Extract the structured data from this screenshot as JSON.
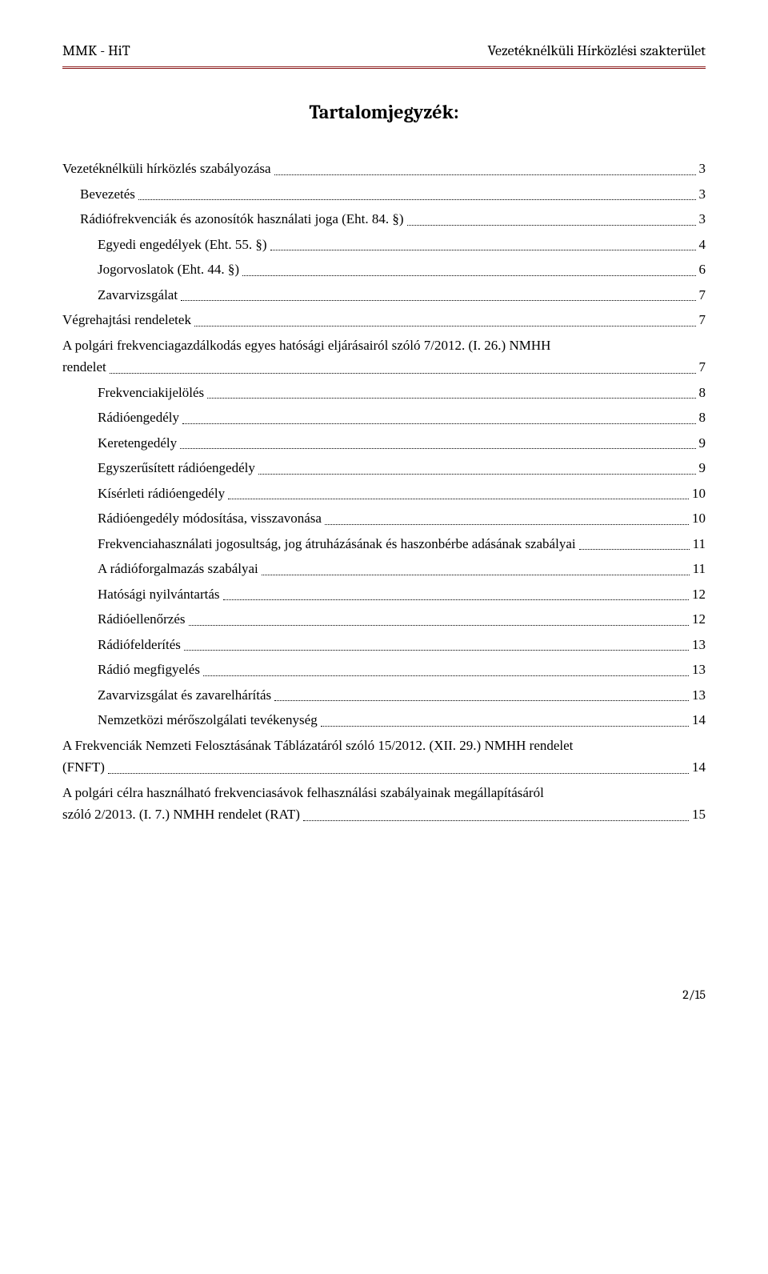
{
  "header": {
    "left": "MMK - HiT",
    "right": "Vezetéknélküli Hírközlési szakterület"
  },
  "title": "Tartalomjegyzék:",
  "toc": [
    {
      "level": 0,
      "label": "Vezetéknélküli hírközlés szabályozása",
      "page": "3"
    },
    {
      "level": 1,
      "label": "Bevezetés",
      "page": "3"
    },
    {
      "level": 1,
      "label": "Rádiófrekvenciák és azonosítók használati joga (Eht. 84. §)",
      "page": "3"
    },
    {
      "level": 2,
      "label": "Egyedi engedélyek (Eht. 55. §)",
      "page": "4"
    },
    {
      "level": 2,
      "label": "Jogorvoslatok (Eht. 44. §)",
      "page": "6"
    },
    {
      "level": 2,
      "label": "Zavarvizsgálat",
      "page": "7"
    },
    {
      "level": 0,
      "label": "Végrehajtási rendeletek",
      "page": "7"
    },
    {
      "level": 0,
      "label_line1": "A polgári frekvenciagazdálkodás egyes hatósági eljárásairól szóló 7/2012. (I. 26.) NMHH",
      "label_line2": "rendelet",
      "page": "7"
    },
    {
      "level": 2,
      "label": "Frekvenciakijelölés",
      "page": "8"
    },
    {
      "level": 2,
      "label": "Rádióengedély",
      "page": "8"
    },
    {
      "level": 2,
      "label": "Keretengedély",
      "page": "9"
    },
    {
      "level": 2,
      "label": "Egyszerűsített rádióengedély",
      "page": "9"
    },
    {
      "level": 2,
      "label": "Kísérleti rádióengedély",
      "page": "10"
    },
    {
      "level": 2,
      "label": "Rádióengedély módosítása, visszavonása",
      "page": "10"
    },
    {
      "level": 2,
      "label": "Frekvenciahasználati jogosultság, jog átruházásának és haszonbérbe adásának szabályai",
      "page": "11"
    },
    {
      "level": 2,
      "label": "A rádióforgalmazás szabályai",
      "page": "11"
    },
    {
      "level": 2,
      "label": "Hatósági nyilvántartás",
      "page": "12"
    },
    {
      "level": 2,
      "label": "Rádióellenőrzés",
      "page": "12"
    },
    {
      "level": 2,
      "label": "Rádiófelderítés",
      "page": "13"
    },
    {
      "level": 2,
      "label": "Rádió megfigyelés",
      "page": "13"
    },
    {
      "level": 2,
      "label": "Zavarvizsgálat és zavarelhárítás",
      "page": "13"
    },
    {
      "level": 2,
      "label": "Nemzetközi mérőszolgálati tevékenység",
      "page": "14"
    },
    {
      "level": 0,
      "label_line1": "A Frekvenciák Nemzeti Felosztásának Táblázatáról szóló 15/2012. (XII. 29.) NMHH rendelet",
      "label_line2": "(FNFT)",
      "page": "14"
    },
    {
      "level": 0,
      "label_line1": "A polgári célra használható frekvenciasávok felhasználási szabályainak megállapításáról",
      "label_line2": "szóló 2/2013. (I. 7.) NMHH rendelet (RAT)",
      "page": "15"
    }
  ],
  "footer": {
    "page_indicator": "2/15"
  },
  "colors": {
    "rule": "#8b1a1a",
    "text": "#000000",
    "bg": "#ffffff"
  }
}
